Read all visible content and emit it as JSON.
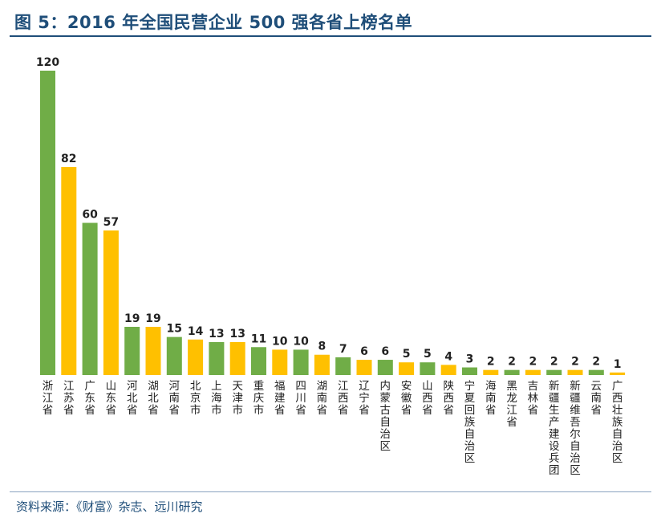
{
  "title": "图 5：2016 年全国民营企业 500 强各省上榜名单",
  "source": "资料来源：《财富》杂志、远川研究",
  "colors": {
    "green": "#70ad47",
    "yellow": "#ffc000",
    "title": "#1f4e79"
  },
  "chart_data": {
    "type": "bar",
    "title": "图 5：2016 年全国民营企业 500 强各省上榜名单",
    "xlabel": "",
    "ylabel": "",
    "ylim": [
      0,
      120
    ],
    "grid": false,
    "legend": "none",
    "categories": [
      "浙江省",
      "江苏省",
      "广东省",
      "山东省",
      "河北省",
      "湖北省",
      "河南省",
      "北京市",
      "上海市",
      "天津市",
      "重庆市",
      "福建省",
      "四川省",
      "湖南省",
      "江西省",
      "辽宁省",
      "内蒙古自治区",
      "安徽省",
      "山西省",
      "陕西省",
      "宁夏回族自治区",
      "海南省",
      "黑龙江省",
      "吉林省",
      "新疆生产建设兵团",
      "新疆维吾尔自治区",
      "云南省",
      "广西壮族自治区"
    ],
    "values": [
      120,
      82,
      60,
      57,
      19,
      19,
      15,
      14,
      13,
      13,
      11,
      10,
      10,
      8,
      7,
      6,
      6,
      5,
      5,
      4,
      3,
      2,
      2,
      2,
      2,
      2,
      2,
      1
    ],
    "bar_colors": [
      "green",
      "yellow",
      "green",
      "yellow",
      "green",
      "yellow",
      "green",
      "yellow",
      "green",
      "yellow",
      "green",
      "yellow",
      "green",
      "yellow",
      "green",
      "yellow",
      "green",
      "yellow",
      "green",
      "yellow",
      "green",
      "yellow",
      "green",
      "yellow",
      "green",
      "yellow",
      "green",
      "yellow"
    ]
  }
}
